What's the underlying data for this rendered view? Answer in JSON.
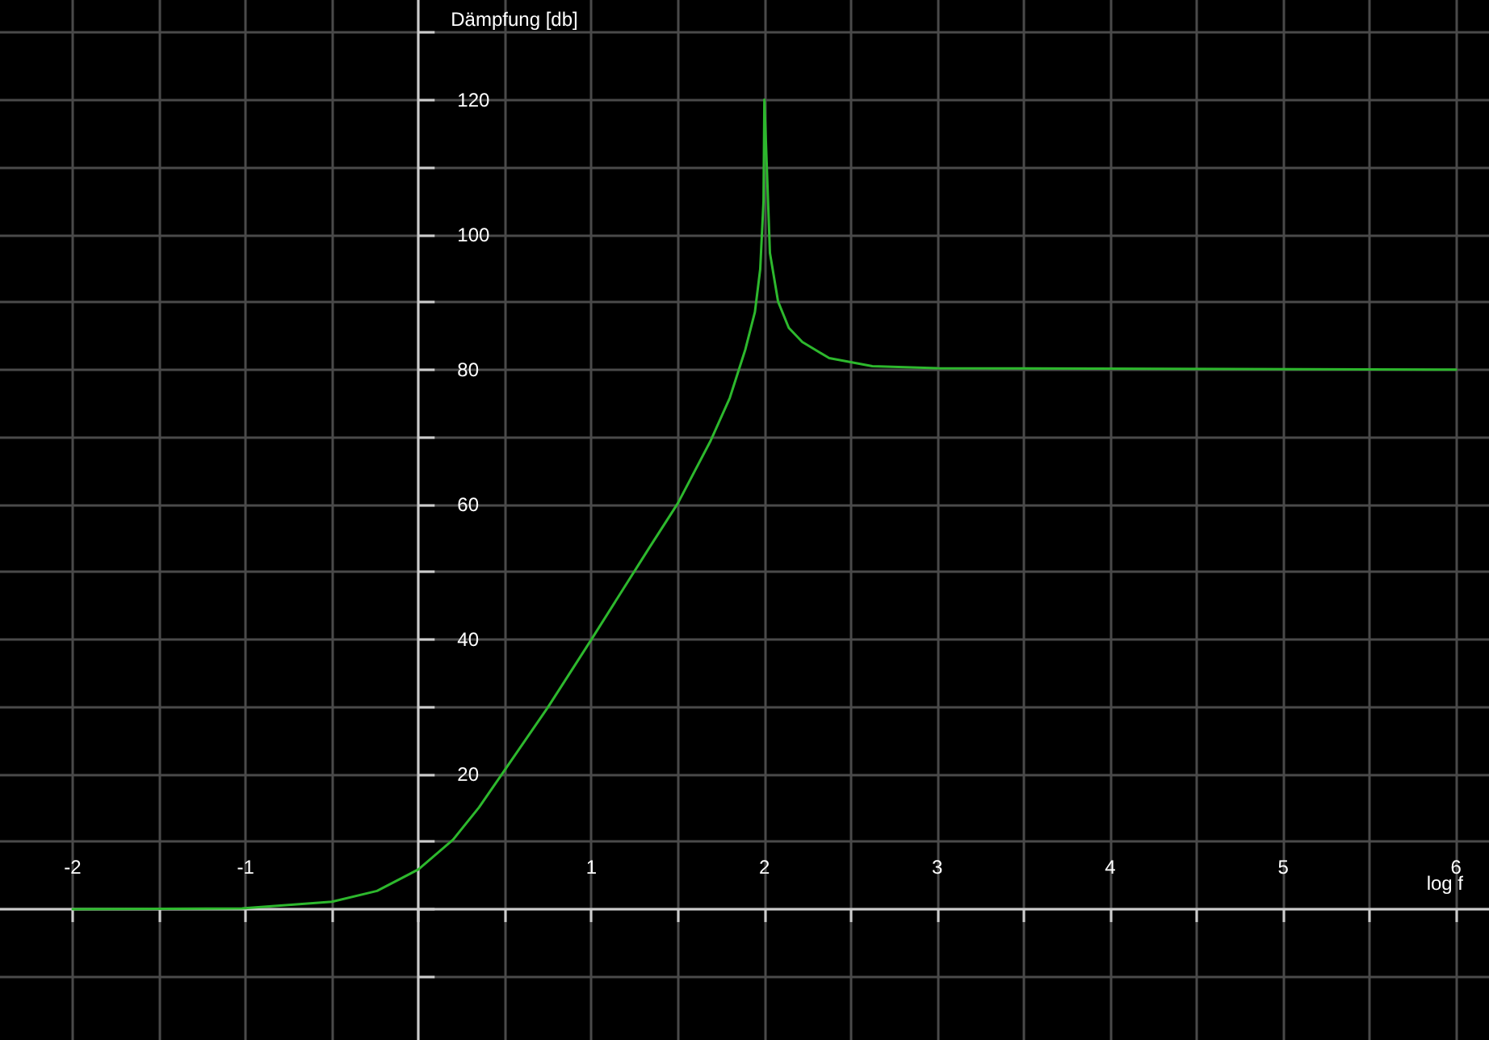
{
  "chart_data": {
    "type": "line",
    "xlabel": "log f",
    "ylabel": "Dämpfung [db]",
    "xlim": [
      -2.42,
      6.19
    ],
    "ylim": [
      -19.4,
      134.8
    ],
    "xticks": [
      -2,
      {
        "value": -1.5,
        "label": null
      },
      -1,
      {
        "value": -0.5,
        "label": null
      },
      {
        "value": 0,
        "label": null
      },
      {
        "value": 0.5,
        "label": null
      },
      1,
      {
        "value": 1.5,
        "label": null
      },
      2,
      {
        "value": 2.5,
        "label": null
      },
      3,
      {
        "value": 3.5,
        "label": null
      },
      4,
      {
        "value": 4.5,
        "label": null
      },
      5,
      {
        "value": 5.5,
        "label": null
      },
      6
    ],
    "yticks": [
      {
        "value": -10,
        "label": null
      },
      {
        "value": 0,
        "label": null
      },
      {
        "value": 10,
        "label": null
      },
      20,
      {
        "value": 30,
        "label": null
      },
      40,
      {
        "value": 50,
        "label": null
      },
      60,
      {
        "value": 70,
        "label": null
      },
      80,
      {
        "value": 90,
        "label": null
      },
      100,
      {
        "value": 110,
        "label": null
      },
      120,
      {
        "value": 130,
        "label": null
      }
    ],
    "grid": true,
    "marker": "none",
    "line_style": "solid",
    "series": [
      {
        "color": "#2db82d",
        "x": [
          -2,
          -1.02,
          -0.5,
          -0.24,
          0,
          0.2,
          0.35,
          0.49,
          0.75,
          1,
          1.33,
          1.5,
          1.69,
          1.8,
          1.89,
          1.945,
          1.976,
          1.995,
          2,
          2.032,
          2.079,
          2.141,
          2.219,
          2.375,
          2.624,
          3,
          6
        ],
        "values": [
          0,
          0.1,
          1.1,
          2.7,
          5.9,
          10.3,
          15.1,
          20.3,
          30,
          40,
          53.4,
          60.2,
          69.5,
          75.8,
          83,
          88.5,
          94.9,
          105,
          120,
          97.3,
          90.1,
          86.2,
          84.1,
          81.7,
          80.5,
          80.2,
          80
        ]
      }
    ]
  }
}
